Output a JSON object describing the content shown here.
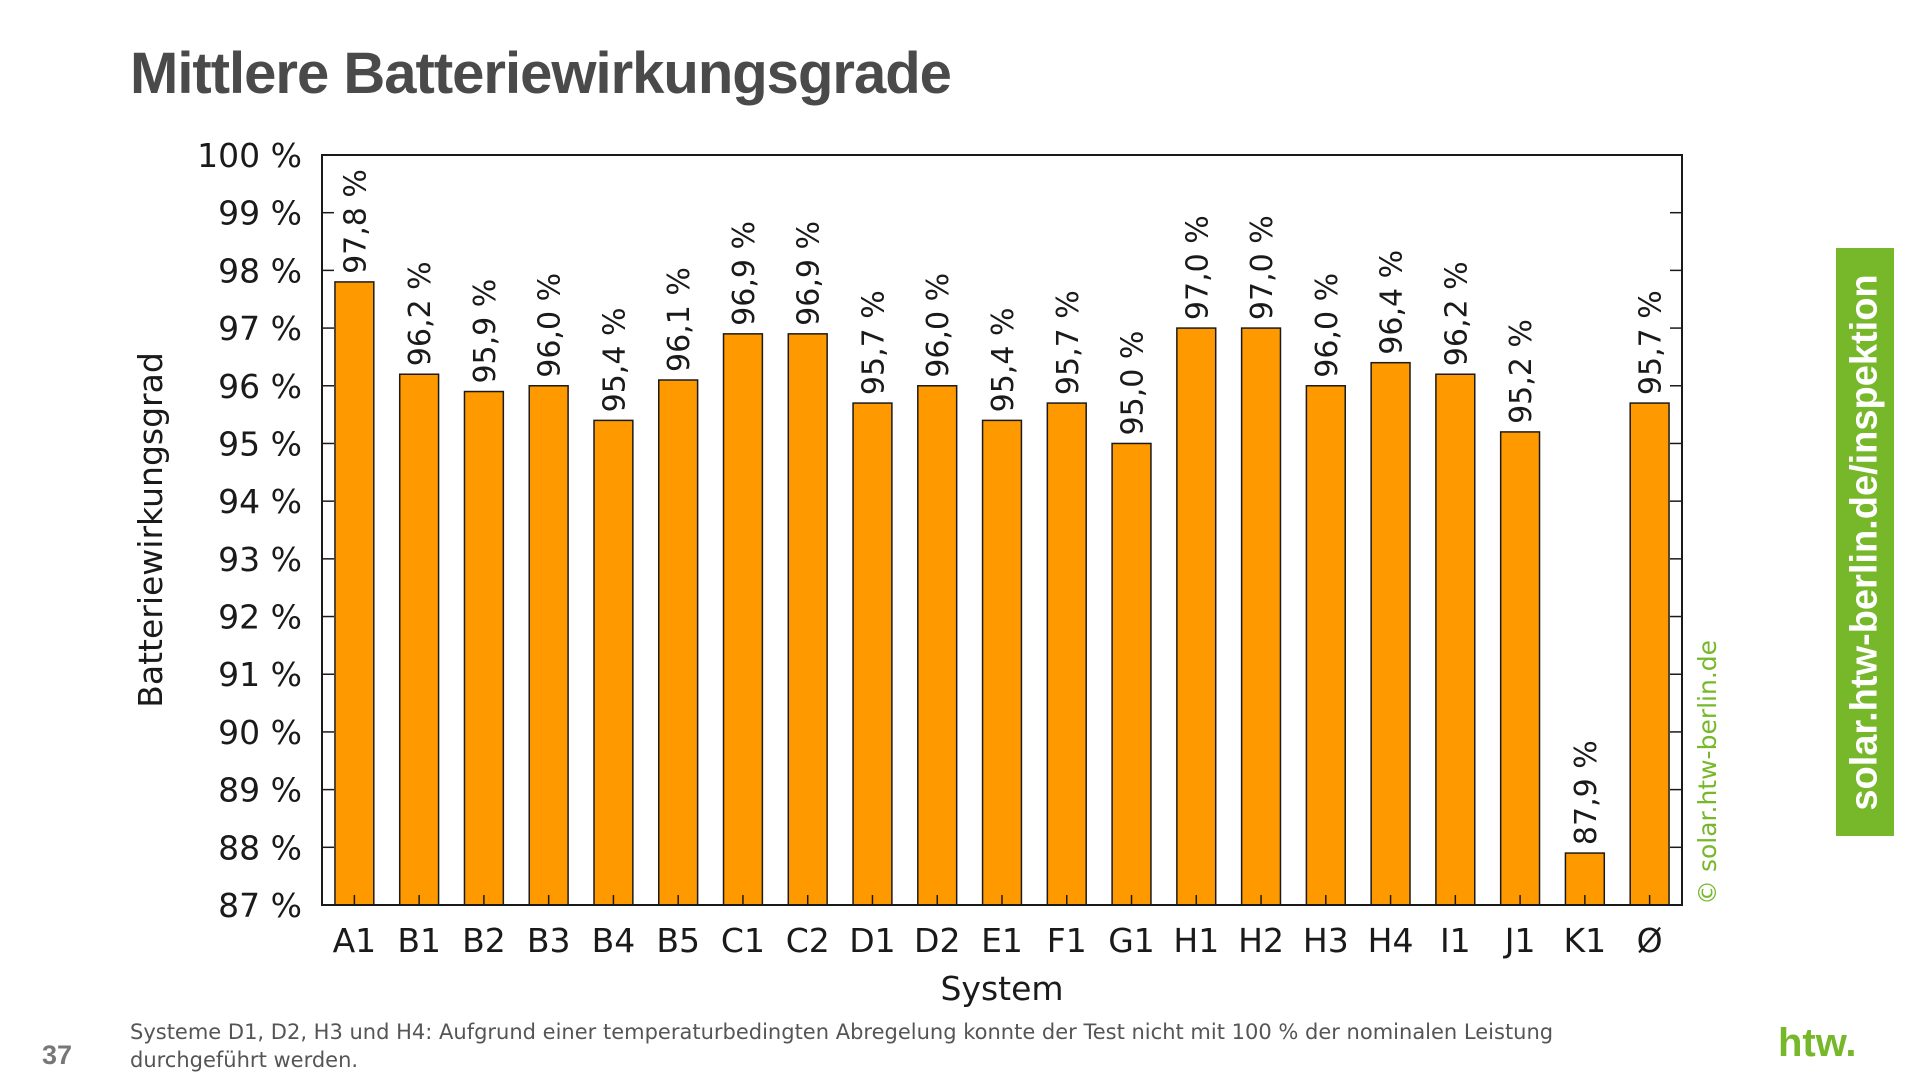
{
  "page": {
    "title": "Mittlere Batteriewirkungsgrade",
    "side_banner": "solar.htw-berlin.de/inspektion",
    "footnote": "Systeme D1, D2, H3 und H4: Aufgrund einer temperaturbedingten Abregelung konnte der Test nicht mit 100 % der nominalen Leistung durchgeführt werden.",
    "page_number": "37",
    "logo_text": "htw."
  },
  "colors": {
    "bar": "#ff9900",
    "bar_stroke": "#1a1a1a",
    "banner": "#76b82a",
    "copyright": "#76b82a"
  },
  "chart_data": {
    "type": "bar",
    "title": "",
    "xlabel": "System",
    "ylabel": "Batteriewirkungsgrad",
    "copyright": "© solar.htw-berlin.de",
    "ylim": [
      87,
      100
    ],
    "y_ticks": [
      87,
      88,
      89,
      90,
      91,
      92,
      93,
      94,
      95,
      96,
      97,
      98,
      99,
      100
    ],
    "y_tick_labels": [
      "87 %",
      "88 %",
      "89 %",
      "90 %",
      "91 %",
      "92 %",
      "93 %",
      "94 %",
      "95 %",
      "96 %",
      "97 %",
      "98 %",
      "99 %",
      "100 %"
    ],
    "categories": [
      "A1",
      "B1",
      "B2",
      "B3",
      "B4",
      "B5",
      "C1",
      "C2",
      "D1",
      "D2",
      "E1",
      "F1",
      "G1",
      "H1",
      "H2",
      "H3",
      "H4",
      "I1",
      "J1",
      "K1",
      "Ø"
    ],
    "values": [
      97.8,
      96.2,
      95.9,
      96.0,
      95.4,
      96.1,
      96.9,
      96.9,
      95.7,
      96.0,
      95.4,
      95.7,
      95.0,
      97.0,
      97.0,
      96.0,
      96.4,
      96.2,
      95.2,
      87.9,
      95.7
    ],
    "value_labels": [
      "97,8 %",
      "96,2 %",
      "95,9 %",
      "96,0 %",
      "95,4 %",
      "96,1 %",
      "96,9 %",
      "96,9 %",
      "95,7 %",
      "96,0 %",
      "95,4 %",
      "95,7 %",
      "95,0 %",
      "97,0 %",
      "97,0 %",
      "96,0 %",
      "96,4 %",
      "96,2 %",
      "95,2 %",
      "87,9 %",
      "95,7 %"
    ],
    "grid": false,
    "legend": "none"
  }
}
